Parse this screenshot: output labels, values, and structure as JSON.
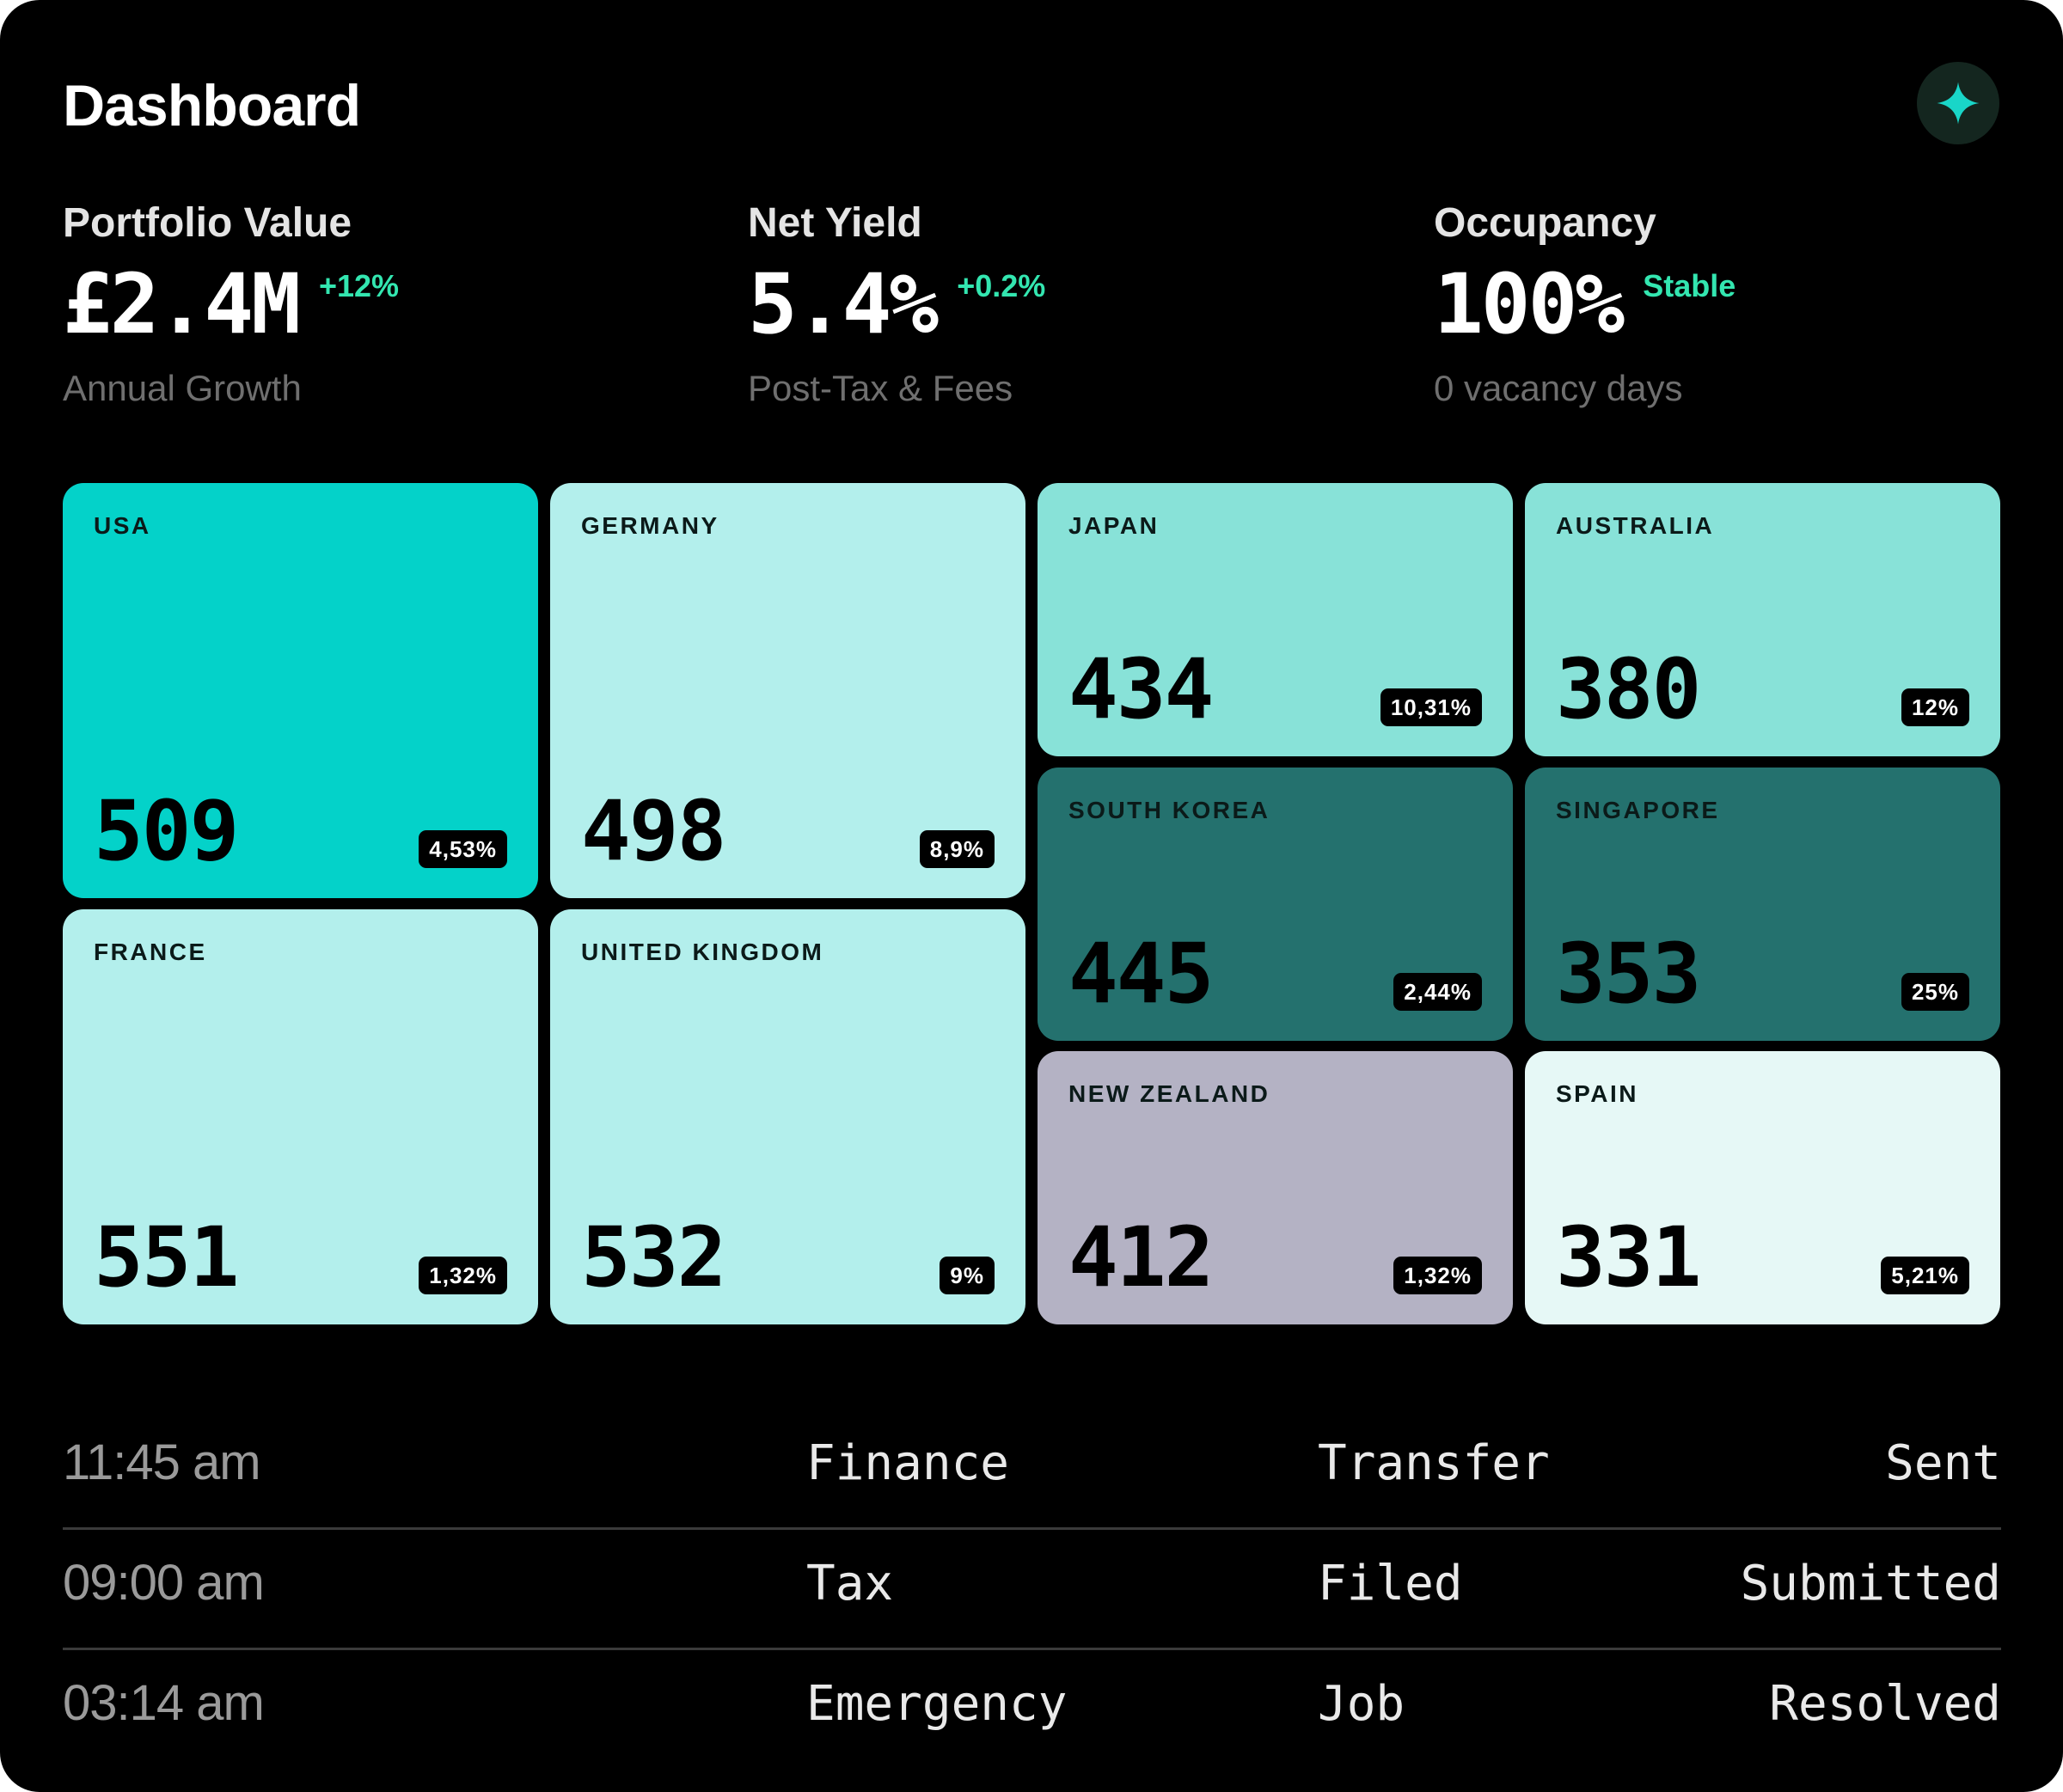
{
  "header": {
    "title": "Dashboard",
    "assistant_icon": "sparkle-icon"
  },
  "stats": [
    {
      "label": "Portfolio Value",
      "value": "£2.4M",
      "delta": "+12%",
      "sub": "Annual Growth"
    },
    {
      "label": "Net Yield",
      "value": "5.4%",
      "delta": "+0.2%",
      "sub": "Post-Tax & Fees"
    },
    {
      "label": "Occupancy",
      "value": "100%",
      "delta": "Stable",
      "sub": "0 vacancy days"
    }
  ],
  "colors": {
    "accent": "#33e6b0",
    "usa": "#04d2c9",
    "light": "#b3efec",
    "japan": "#88e2d8",
    "dark": "#24716e",
    "nz": "#b4b2c4",
    "pale": "#e6f8f6"
  },
  "countries": [
    {
      "name": "USA",
      "value": "509",
      "share": "4,53%"
    },
    {
      "name": "GERMANY",
      "value": "498",
      "share": "8,9%"
    },
    {
      "name": "FRANCE",
      "value": "551",
      "share": "1,32%"
    },
    {
      "name": "UNITED KINGDOM",
      "value": "532",
      "share": "9%"
    },
    {
      "name": "JAPAN",
      "value": "434",
      "share": "10,31%"
    },
    {
      "name": "AUSTRALIA",
      "value": "380",
      "share": "12%"
    },
    {
      "name": "SOUTH KOREA",
      "value": "445",
      "share": "2,44%"
    },
    {
      "name": "SINGAPORE",
      "value": "353",
      "share": "25%"
    },
    {
      "name": "NEW ZEALAND",
      "value": "412",
      "share": "1,32%"
    },
    {
      "name": "SPAIN",
      "value": "331",
      "share": "5,21%"
    }
  ],
  "log": [
    {
      "time": "11:45 am",
      "department": "Finance",
      "action": "Transfer",
      "status": "Sent"
    },
    {
      "time": "09:00 am",
      "department": "Tax",
      "action": "Filed",
      "status": "Submitted"
    },
    {
      "time": "03:14 am",
      "department": "Emergency",
      "action": "Job",
      "status": "Resolved"
    }
  ]
}
